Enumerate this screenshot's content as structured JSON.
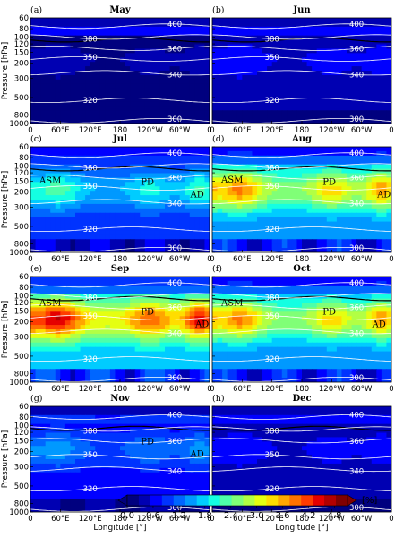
{
  "chart_data": {
    "type": "heatmap",
    "xlabel": "Longitude [°]",
    "ylabel": "Pressure [hPa]",
    "x_ticks": [
      "0",
      "60°E",
      "120°E",
      "180",
      "120°W",
      "60°W",
      "0"
    ],
    "y_ticks": [
      60,
      80,
      100,
      120,
      150,
      200,
      300,
      500,
      800,
      1000
    ],
    "ylim": [
      1000,
      60
    ],
    "y_scale": "log",
    "colorbar": {
      "ticks": [
        "0.0",
        "0.6",
        "1.2",
        "1.8",
        "2.4",
        "3.0",
        "3.6",
        "4.2",
        "4.8"
      ],
      "unit": "[%]",
      "range": [
        0.0,
        5.1
      ],
      "colors": [
        "#00007f",
        "#0000b2",
        "#0000ff",
        "#0033ff",
        "#0066ff",
        "#0099ff",
        "#00ccff",
        "#14ffe2",
        "#4dffaa",
        "#80ff77",
        "#b2ff44",
        "#e5ff11",
        "#ffdd00",
        "#ffa600",
        "#ff7200",
        "#ff3b00",
        "#e50000",
        "#b20000",
        "#7f0000"
      ]
    },
    "panels": [
      {
        "label": "(a)",
        "month": "May",
        "base": 0.3,
        "tp_level": 3.8,
        "isentropes": [
          {
            "label": "300",
            "p": 930
          },
          {
            "label": "320",
            "p": 540
          },
          {
            "label": "340",
            "p": 260
          },
          {
            "label": "350",
            "p": 180
          },
          {
            "label": "360",
            "p": 135
          },
          {
            "label": "380",
            "p": 100
          },
          {
            "label": "400",
            "p": 75
          }
        ],
        "regions": []
      },
      {
        "label": "(b)",
        "month": "Jun",
        "base": 0.6,
        "tp_level": 4.2,
        "isentropes": [
          {
            "label": "300",
            "p": 930
          },
          {
            "label": "320",
            "p": 540
          },
          {
            "label": "340",
            "p": 260
          },
          {
            "label": "350",
            "p": 180
          },
          {
            "label": "360",
            "p": 135
          },
          {
            "label": "380",
            "p": 100
          },
          {
            "label": "400",
            "p": 75
          }
        ],
        "regions": []
      },
      {
        "label": "(c)",
        "month": "Jul",
        "base": 1.8,
        "tp_level": 4.2,
        "isentropes": [
          {
            "label": "300",
            "p": 930
          },
          {
            "label": "320",
            "p": 540
          },
          {
            "label": "340",
            "p": 260
          },
          {
            "label": "350",
            "p": 180
          },
          {
            "label": "360",
            "p": 135
          },
          {
            "label": "380",
            "p": 100
          },
          {
            "label": "400",
            "p": 75
          }
        ],
        "regions": [
          {
            "label": "ASM",
            "lon": 40,
            "p": 160
          },
          {
            "label": "PD",
            "lon": 235,
            "p": 165
          },
          {
            "label": "AD",
            "lon": 335,
            "p": 230
          }
        ]
      },
      {
        "label": "(d)",
        "month": "Aug",
        "base": 3.0,
        "tp_level": 4.8,
        "isentropes": [
          {
            "label": "300",
            "p": 930
          },
          {
            "label": "320",
            "p": 540
          },
          {
            "label": "340",
            "p": 260
          },
          {
            "label": "350",
            "p": 180
          },
          {
            "label": "360",
            "p": 135
          },
          {
            "label": "380",
            "p": 100
          },
          {
            "label": "400",
            "p": 75
          }
        ],
        "regions": [
          {
            "label": "ASM",
            "lon": 40,
            "p": 155
          },
          {
            "label": "PD",
            "lon": 235,
            "p": 165
          },
          {
            "label": "AD",
            "lon": 345,
            "p": 230
          }
        ]
      },
      {
        "label": "(e)",
        "month": "Sep",
        "base": 3.6,
        "tp_level": 4.8,
        "isentropes": [
          {
            "label": "300",
            "p": 930
          },
          {
            "label": "320",
            "p": 540
          },
          {
            "label": "340",
            "p": 260
          },
          {
            "label": "350",
            "p": 180
          },
          {
            "label": "360",
            "p": 135
          },
          {
            "label": "380",
            "p": 100
          },
          {
            "label": "400",
            "p": 75
          }
        ],
        "regions": [
          {
            "label": "ASM",
            "lon": 40,
            "p": 130
          },
          {
            "label": "PD",
            "lon": 235,
            "p": 165
          },
          {
            "label": "AD",
            "lon": 345,
            "p": 230
          }
        ]
      },
      {
        "label": "(f)",
        "month": "Oct",
        "base": 3.0,
        "tp_level": 4.2,
        "isentropes": [
          {
            "label": "300",
            "p": 930
          },
          {
            "label": "320",
            "p": 540
          },
          {
            "label": "340",
            "p": 260
          },
          {
            "label": "350",
            "p": 180
          },
          {
            "label": "360",
            "p": 135
          },
          {
            "label": "380",
            "p": 100
          },
          {
            "label": "400",
            "p": 75
          }
        ],
        "regions": [
          {
            "label": "ASM",
            "lon": 40,
            "p": 130
          },
          {
            "label": "PD",
            "lon": 235,
            "p": 165
          },
          {
            "label": "AD",
            "lon": 335,
            "p": 230
          }
        ]
      },
      {
        "label": "(g)",
        "month": "Nov",
        "base": 1.2,
        "tp_level": 4.2,
        "isentropes": [
          {
            "label": "300",
            "p": 930
          },
          {
            "label": "320",
            "p": 540
          },
          {
            "label": "340",
            "p": 320
          },
          {
            "label": "350",
            "p": 230
          },
          {
            "label": "360",
            "p": 150
          },
          {
            "label": "380",
            "p": 110
          },
          {
            "label": "400",
            "p": 80
          }
        ],
        "regions": [
          {
            "label": "PD",
            "lon": 235,
            "p": 165
          },
          {
            "label": "AD",
            "lon": 335,
            "p": 230
          }
        ]
      },
      {
        "label": "(h)",
        "month": "Dec",
        "base": 0.6,
        "tp_level": 4.2,
        "isentropes": [
          {
            "label": "300",
            "p": 930
          },
          {
            "label": "320",
            "p": 540
          },
          {
            "label": "340",
            "p": 320
          },
          {
            "label": "350",
            "p": 230
          },
          {
            "label": "360",
            "p": 150
          },
          {
            "label": "380",
            "p": 110
          },
          {
            "label": "400",
            "p": 80
          }
        ],
        "regions": []
      }
    ]
  }
}
